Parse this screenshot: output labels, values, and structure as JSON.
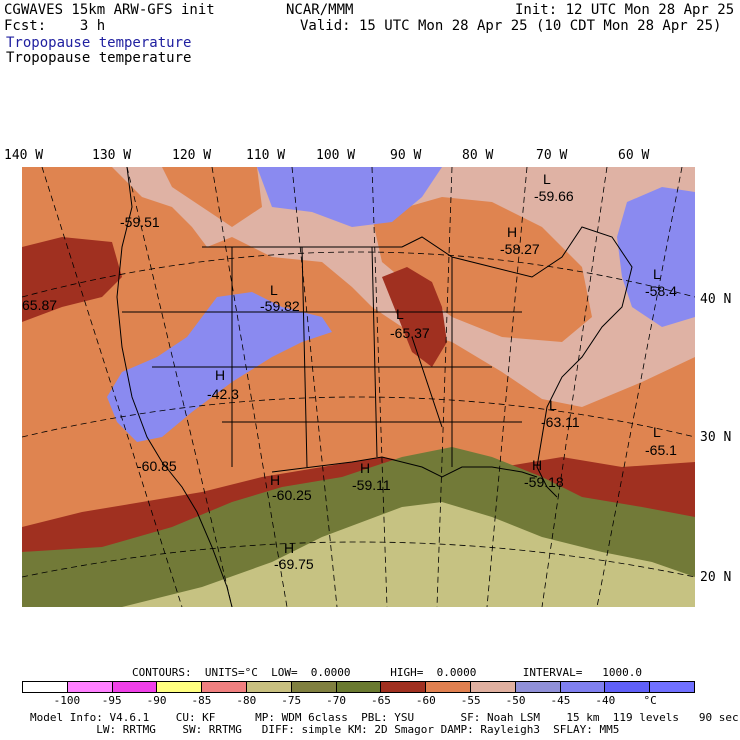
{
  "header": {
    "model": "CGWAVES 15km ARW-GFS init",
    "fcst": "Fcst:    3 h",
    "center": "NCAR/MMM",
    "init": "Init: 12 UTC Mon 28 Apr 25",
    "valid": "Valid: 15 UTC Mon 28 Apr 25 (10 CDT Mon 28 Apr 25)",
    "field_1": "Tropopause temperature",
    "field_2": "Tropopause temperature"
  },
  "longitudes": [
    "140 W",
    "130 W",
    "120 W",
    "110 W",
    "100 W",
    "90 W",
    "80 W",
    "70 W",
    "60 W"
  ],
  "latitudes": [
    "40 N",
    "30 N",
    "20 N"
  ],
  "labels": [
    {
      "name": "label-low-59-51",
      "text": "-59.51"
    },
    {
      "name": "label-low-65-87",
      "text": "65.87"
    },
    {
      "name": "label-L-59-82",
      "text": "L"
    },
    {
      "name": "label-low-59-82",
      "text": "-59.82"
    },
    {
      "name": "label-H-42-3",
      "text": "H"
    },
    {
      "name": "label-high-42-3",
      "text": "-42.3"
    },
    {
      "name": "label-low-60-85",
      "text": "-60.85"
    },
    {
      "name": "label-H-60-25",
      "text": "H"
    },
    {
      "name": "label-high-60-25",
      "text": "-60.25"
    },
    {
      "name": "label-H-59-11",
      "text": "H"
    },
    {
      "name": "label-high-59-11",
      "text": "-59.11"
    },
    {
      "name": "label-H-69-75",
      "text": "H"
    },
    {
      "name": "label-high-69-75",
      "text": "-69.75"
    },
    {
      "name": "label-L-65-37",
      "text": "L"
    },
    {
      "name": "label-low-65-37",
      "text": "-65.37"
    },
    {
      "name": "label-L-59-66",
      "text": "L"
    },
    {
      "name": "label-low-59-66",
      "text": "-59.66"
    },
    {
      "name": "label-H-58-27",
      "text": "H"
    },
    {
      "name": "label-high-58-27",
      "text": "-58.27"
    },
    {
      "name": "label-L-58-4",
      "text": "L"
    },
    {
      "name": "label-low-58-4",
      "text": "-58.4"
    },
    {
      "name": "label-L-63-11",
      "text": "L"
    },
    {
      "name": "label-low-63-11",
      "text": "-63.11"
    },
    {
      "name": "label-L-65-1",
      "text": "L"
    },
    {
      "name": "label-low-65-1",
      "text": "-65.1"
    },
    {
      "name": "label-H-59-18",
      "text": "H"
    },
    {
      "name": "label-high-59-18",
      "text": "-59.18"
    }
  ],
  "contours": "CONTOURS:  UNITS=°C  LOW=  0.0000      HIGH=  0.0000       INTERVAL=   1000.0",
  "colorbar": {
    "colors": [
      "#ffffff",
      "#ff80ff",
      "#f040e8",
      "#ffff80",
      "#f08080",
      "#c8c080",
      "#808040",
      "#6a7a30",
      "#a03020",
      "#e08050",
      "#e0b0a0",
      "#9090d8",
      "#8080f0",
      "#6060f8",
      "#7070ff"
    ],
    "ticks": [
      "-100",
      "-95",
      "-90",
      "-85",
      "-80",
      "-75",
      "-70",
      "-65",
      "-60",
      "-55",
      "-50",
      "-45",
      "-40",
      "°C"
    ]
  },
  "footer": {
    "line1": "Model Info: V4.6.1    CU: KF      MP: WDM 6class  PBL: YSU       SF: Noah LSM    15 km  119 levels   90 sec",
    "line2": "          LW: RRTMG    SW: RRTMG   DIFF: simple KM: 2D Smagor DAMP: Rayleigh3  SFLAY: MM5"
  },
  "colors": {
    "blue_region": "#8a8af0",
    "pink_region": "#dfb2a4",
    "orange_region": "#df8450",
    "darkred_region": "#a03020",
    "olive_region": "#727a38",
    "tan_region": "#c6c282"
  }
}
